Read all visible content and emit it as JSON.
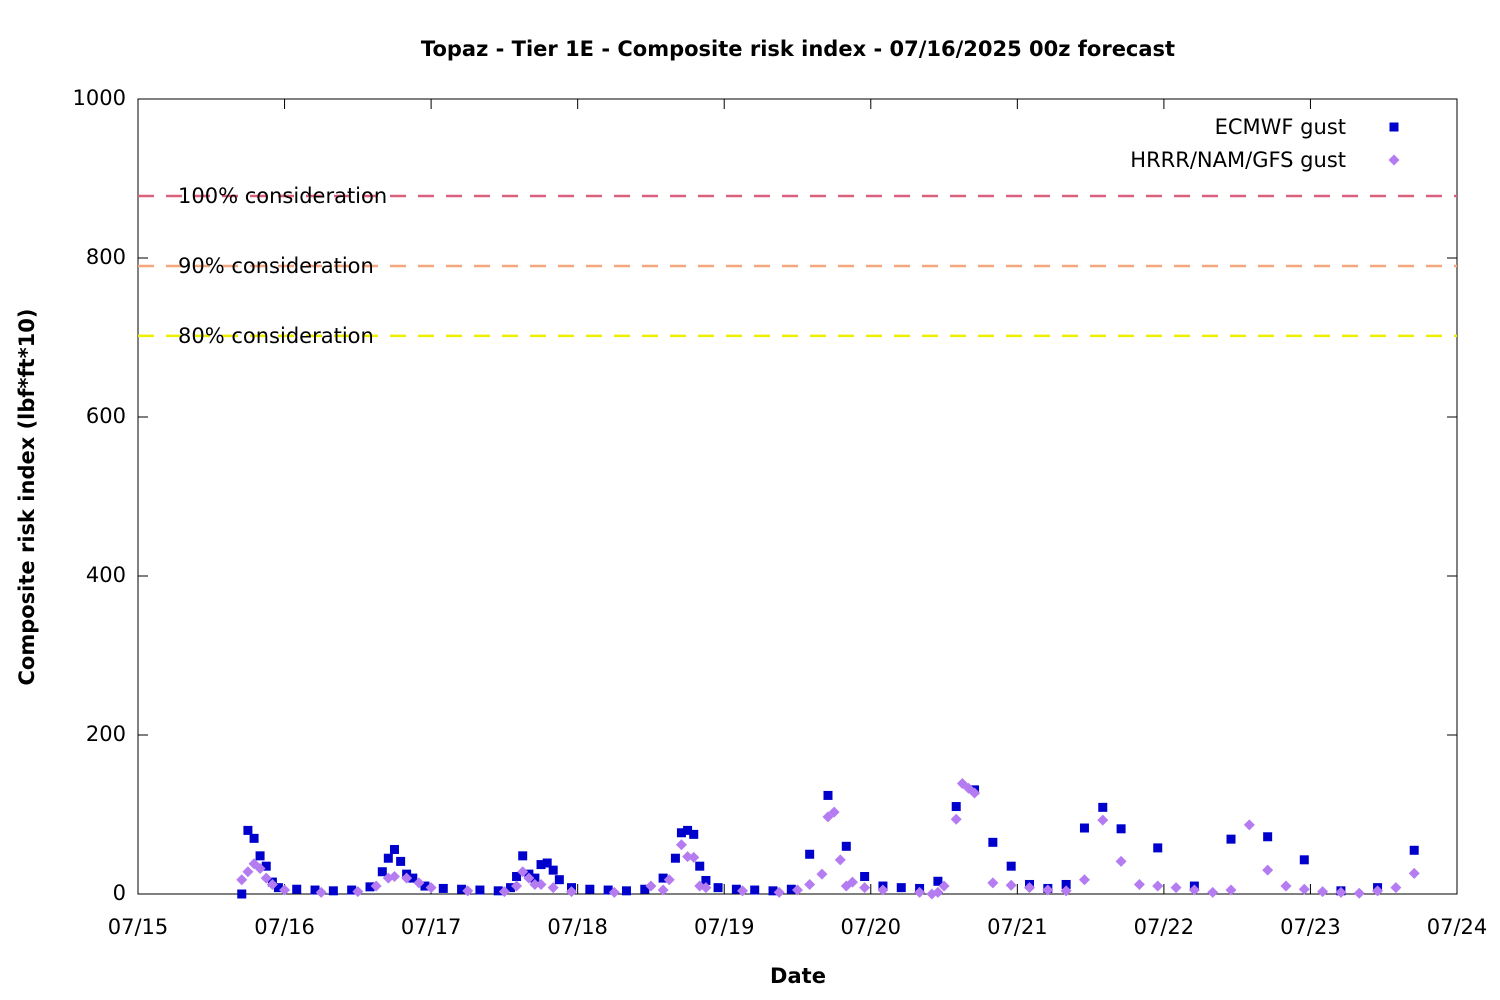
{
  "chart_data": {
    "type": "scatter",
    "title": "Topaz - Tier 1E - Composite risk index - 07/16/2025 00z forecast",
    "x_label": "Date",
    "y_label": "Composite risk index (lbf*ft*10)",
    "xlim": [
      0,
      9
    ],
    "xticks": [
      {
        "value": 0,
        "label": "07/15"
      },
      {
        "value": 1,
        "label": "07/16"
      },
      {
        "value": 2,
        "label": "07/17"
      },
      {
        "value": 3,
        "label": "07/18"
      },
      {
        "value": 4,
        "label": "07/19"
      },
      {
        "value": 5,
        "label": "07/20"
      },
      {
        "value": 6,
        "label": "07/21"
      },
      {
        "value": 7,
        "label": "07/22"
      },
      {
        "value": 8,
        "label": "07/23"
      },
      {
        "value": 9,
        "label": "07/24"
      }
    ],
    "ylim": [
      0,
      1000
    ],
    "yticks": [
      0,
      200,
      400,
      600,
      800,
      1000
    ],
    "legend": "top right",
    "reference_lines": [
      {
        "value": 878,
        "label": "100% consideration",
        "color": "#d9607f"
      },
      {
        "value": 790,
        "label": "90% consideration",
        "color": "#f4a77f"
      },
      {
        "value": 702,
        "label": "80% consideration",
        "color": "#eeee00"
      }
    ],
    "series": [
      {
        "name": "ECMWF gust",
        "color": "#0000cc",
        "marker": "square",
        "x": [
          0.708,
          0.75,
          0.792,
          0.833,
          0.875,
          0.917,
          0.958,
          1.083,
          1.208,
          1.333,
          1.458,
          1.583,
          1.667,
          1.708,
          1.75,
          1.792,
          1.833,
          1.875,
          1.958,
          2.083,
          2.208,
          2.333,
          2.458,
          2.542,
          2.583,
          2.625,
          2.667,
          2.708,
          2.75,
          2.792,
          2.833,
          2.875,
          2.958,
          3.083,
          3.208,
          3.333,
          3.458,
          3.583,
          3.667,
          3.708,
          3.75,
          3.792,
          3.833,
          3.875,
          3.958,
          4.083,
          4.208,
          4.333,
          4.458,
          4.583,
          4.708,
          4.833,
          4.958,
          5.083,
          5.208,
          5.333,
          5.458,
          5.583,
          5.708,
          5.833,
          5.958,
          6.083,
          6.208,
          6.333,
          6.458,
          6.583,
          6.708,
          6.958,
          7.208,
          7.458,
          7.708,
          7.958,
          8.208,
          8.458,
          8.708
        ],
        "values": [
          0,
          80,
          70,
          48,
          35,
          15,
          8,
          6,
          5,
          4,
          5,
          9,
          28,
          45,
          56,
          41,
          25,
          20,
          10,
          7,
          6,
          5,
          4,
          8,
          22,
          48,
          25,
          20,
          37,
          39,
          30,
          18,
          8,
          6,
          5,
          4,
          6,
          20,
          45,
          77,
          80,
          75,
          35,
          17,
          8,
          6,
          5,
          4,
          6,
          50,
          124,
          60,
          22,
          10,
          8,
          7,
          16,
          110,
          131,
          65,
          35,
          12,
          7,
          12,
          83,
          109,
          82,
          58,
          10,
          69,
          72,
          43,
          4,
          8,
          55
        ]
      },
      {
        "name": "HRRR/NAM/GFS gust",
        "color": "#b57cf2",
        "marker": "diamond",
        "x": [
          0.708,
          0.75,
          0.792,
          0.833,
          0.875,
          0.917,
          1.0,
          1.25,
          1.5,
          1.625,
          1.708,
          1.75,
          1.833,
          1.917,
          2.0,
          2.25,
          2.5,
          2.583,
          2.625,
          2.667,
          2.708,
          2.75,
          2.833,
          2.958,
          3.25,
          3.5,
          3.583,
          3.625,
          3.708,
          3.75,
          3.792,
          3.833,
          3.875,
          4.125,
          4.375,
          4.5,
          4.583,
          4.667,
          4.708,
          4.75,
          4.792,
          4.833,
          4.875,
          4.958,
          5.083,
          5.333,
          5.417,
          5.458,
          5.5,
          5.583,
          5.625,
          5.667,
          5.708,
          5.833,
          5.958,
          6.083,
          6.208,
          6.333,
          6.458,
          6.583,
          6.708,
          6.833,
          6.958,
          7.083,
          7.208,
          7.333,
          7.458,
          7.583,
          7.708,
          7.833,
          7.958,
          8.083,
          8.208,
          8.333,
          8.458,
          8.583,
          8.708
        ],
        "values": [
          18,
          28,
          38,
          32,
          20,
          12,
          5,
          2,
          3,
          10,
          20,
          22,
          20,
          14,
          8,
          4,
          3,
          10,
          28,
          20,
          12,
          12,
          8,
          3,
          2,
          10,
          5,
          18,
          62,
          47,
          46,
          10,
          8,
          4,
          2,
          5,
          12,
          25,
          97,
          103,
          43,
          10,
          15,
          8,
          5,
          2,
          0,
          2,
          10,
          94,
          139,
          133,
          127,
          14,
          11,
          8,
          5,
          4,
          18,
          93,
          41,
          12,
          10,
          8,
          5,
          2,
          5,
          87,
          30,
          10,
          6,
          3,
          2,
          1,
          4,
          8,
          26
        ]
      }
    ]
  }
}
